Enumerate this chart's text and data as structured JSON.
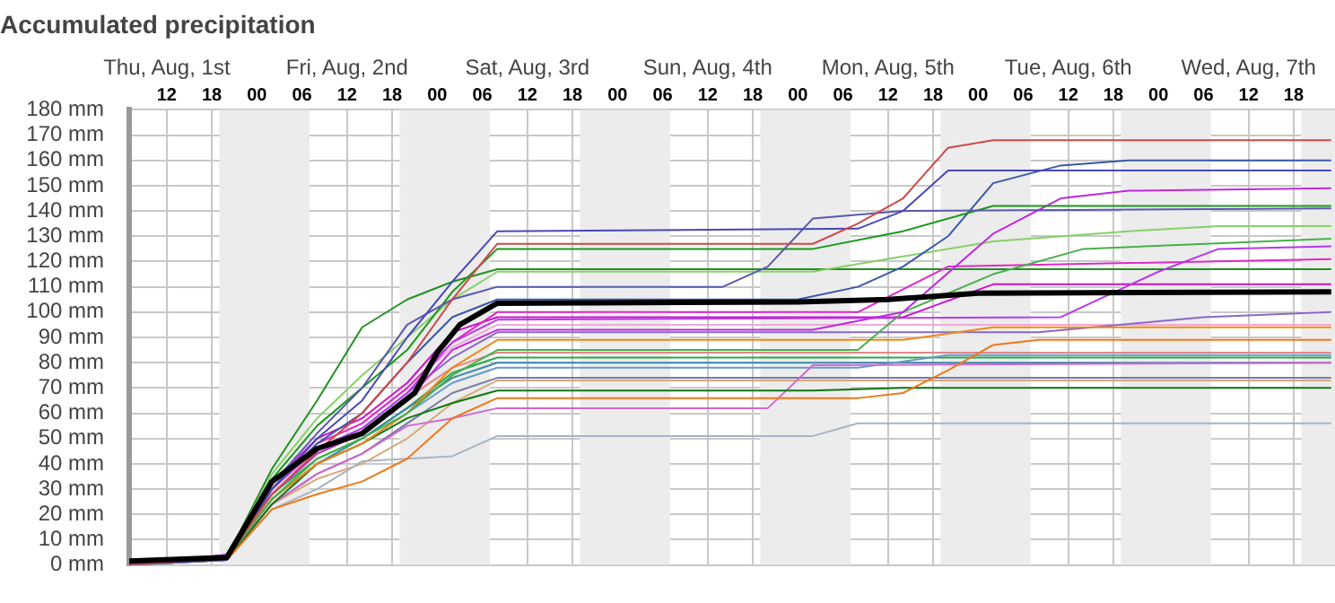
{
  "chart_data": {
    "type": "line",
    "title": "Accumulated precipitation",
    "xlim": [
      7,
      167.5
    ],
    "xticks": [
      {
        "value": 12,
        "label": "12"
      },
      {
        "value": 18,
        "label": "18"
      },
      {
        "value": 24,
        "label": "00"
      },
      {
        "value": 30,
        "label": "06"
      },
      {
        "value": 36,
        "label": "12"
      },
      {
        "value": 42,
        "label": "18"
      },
      {
        "value": 48,
        "label": "00"
      },
      {
        "value": 54,
        "label": "06"
      },
      {
        "value": 60,
        "label": "12"
      },
      {
        "value": 66,
        "label": "18"
      },
      {
        "value": 72,
        "label": "00"
      },
      {
        "value": 78,
        "label": "06"
      },
      {
        "value": 84,
        "label": "12"
      },
      {
        "value": 90,
        "label": "18"
      },
      {
        "value": 96,
        "label": "00"
      },
      {
        "value": 102,
        "label": "06"
      },
      {
        "value": 108,
        "label": "12"
      },
      {
        "value": 114,
        "label": "18"
      },
      {
        "value": 120,
        "label": "00"
      },
      {
        "value": 126,
        "label": "06"
      },
      {
        "value": 132,
        "label": "12"
      },
      {
        "value": 138,
        "label": "18"
      },
      {
        "value": 144,
        "label": "00"
      },
      {
        "value": 150,
        "label": "06"
      },
      {
        "value": 156,
        "label": "12"
      },
      {
        "value": 162,
        "label": "18"
      }
    ],
    "x2lim": [
      "--08-01T07:00",
      "--08-07T23:30"
    ],
    "x2ticks": [
      {
        "value": "--08-01T12:00",
        "label": "Thu, Aug, 1st"
      },
      {
        "value": "--08-02T12:00",
        "label": "Fri, Aug, 2nd"
      },
      {
        "value": "--08-03T12:00",
        "label": "Sat, Aug, 3rd"
      },
      {
        "value": "--08-04T12:00",
        "label": "Sun, Aug, 4th"
      },
      {
        "value": "--08-05T12:00",
        "label": "Mon, Aug, 5th"
      },
      {
        "value": "--08-06T12:00",
        "label": "Tue, Aug, 6th"
      },
      {
        "value": "--08-07T12:00",
        "label": "Wed, Aug, 7th"
      }
    ],
    "ylim": [
      0,
      180
    ],
    "yticks": [
      {
        "value": 0,
        "label": "0 mm"
      },
      {
        "value": 10,
        "label": "10 mm"
      },
      {
        "value": 20,
        "label": "20 mm"
      },
      {
        "value": 30,
        "label": "30 mm"
      },
      {
        "value": 40,
        "label": "40 mm"
      },
      {
        "value": 50,
        "label": "50 mm"
      },
      {
        "value": 60,
        "label": "60 mm"
      },
      {
        "value": 70,
        "label": "70 mm"
      },
      {
        "value": 80,
        "label": "80 mm"
      },
      {
        "value": 90,
        "label": "90 mm"
      },
      {
        "value": 100,
        "label": "100 mm"
      },
      {
        "value": 110,
        "label": "110 mm"
      },
      {
        "value": 120,
        "label": "120 mm"
      },
      {
        "value": 130,
        "label": "130 mm"
      },
      {
        "value": 140,
        "label": "140 mm"
      },
      {
        "value": 150,
        "label": "150 mm"
      },
      {
        "value": 160,
        "label": "160 mm"
      },
      {
        "value": 170,
        "label": "170 mm"
      },
      {
        "value": 180,
        "label": "180 mm"
      }
    ],
    "grid": true,
    "bands": [
      {
        "axis": "x",
        "from": 19,
        "to": 31,
        "color": "#ececec"
      },
      {
        "axis": "x",
        "from": 43,
        "to": 55,
        "color": "#ececec"
      },
      {
        "axis": "x",
        "from": 67,
        "to": 79,
        "color": "#ececec"
      },
      {
        "axis": "x",
        "from": 91,
        "to": 103,
        "color": "#ececec"
      },
      {
        "axis": "x",
        "from": 115,
        "to": 127,
        "color": "#ececec"
      },
      {
        "axis": "x",
        "from": 139,
        "to": 151,
        "color": "#ececec"
      },
      {
        "axis": "x",
        "from": 163,
        "to": 167.5,
        "color": "#ececec"
      }
    ],
    "series": [
      {
        "color": "#d04848",
        "x": [
          7,
          20,
          26,
          32,
          38,
          44,
          50,
          56,
          98,
          104,
          110,
          116,
          122,
          167
        ],
        "values": [
          0,
          3,
          28,
          45,
          60,
          80,
          105,
          127,
          127,
          135,
          145,
          165,
          168,
          168
        ]
      },
      {
        "color": "#4848b8",
        "x": [
          7,
          20,
          26,
          32,
          38,
          44,
          50,
          56,
          104,
          110,
          116,
          167
        ],
        "values": [
          0,
          2,
          30,
          50,
          65,
          90,
          112,
          132,
          133,
          140,
          156,
          156
        ]
      },
      {
        "color": "#5858b0",
        "x": [
          7,
          20,
          26,
          32,
          38,
          44,
          50,
          56,
          86,
          92,
          98,
          110,
          167
        ],
        "values": [
          0,
          3,
          32,
          52,
          70,
          95,
          105,
          110,
          110,
          118,
          137,
          140,
          141
        ]
      },
      {
        "color": "#189818",
        "x": [
          7,
          20,
          26,
          32,
          38,
          44,
          50,
          56,
          98,
          110,
          122,
          167
        ],
        "values": [
          0,
          3,
          34,
          55,
          70,
          85,
          108,
          125,
          125,
          132,
          142,
          142
        ]
      },
      {
        "color": "#3858a8",
        "x": [
          7,
          20,
          26,
          32,
          38,
          44,
          50,
          56,
          96,
          104,
          110,
          116,
          122,
          131,
          140,
          167
        ],
        "values": [
          0,
          3,
          30,
          48,
          60,
          80,
          98,
          105,
          105,
          110,
          118,
          130,
          151,
          158,
          160,
          160
        ]
      },
      {
        "color": "#c028e0",
        "x": [
          7,
          20,
          26,
          32,
          38,
          44,
          50,
          56,
          98,
          110,
          122,
          131,
          140,
          167
        ],
        "values": [
          0,
          4,
          28,
          44,
          52,
          65,
          85,
          93,
          93,
          100,
          131,
          145,
          148,
          149
        ]
      },
      {
        "color": "#b838e8",
        "x": [
          7,
          20,
          26,
          32,
          38,
          44,
          50,
          56,
          131,
          144,
          152,
          167
        ],
        "values": [
          0,
          4,
          30,
          46,
          54,
          68,
          88,
          97,
          98,
          116,
          125,
          126
        ]
      },
      {
        "color": "#88d068",
        "x": [
          7,
          20,
          26,
          32,
          38,
          44,
          50,
          56,
          98,
          110,
          122,
          140,
          152,
          167
        ],
        "values": [
          0,
          3,
          36,
          58,
          75,
          90,
          105,
          116,
          116,
          122,
          128,
          132,
          134,
          134
        ]
      },
      {
        "color": "#48b048",
        "x": [
          7,
          20,
          26,
          32,
          38,
          44,
          50,
          56,
          104,
          110,
          122,
          134,
          167
        ],
        "values": [
          0,
          3,
          26,
          42,
          50,
          60,
          75,
          85,
          85,
          100,
          115,
          125,
          129
        ]
      },
      {
        "color": "#e028c8",
        "x": [
          7,
          20,
          26,
          32,
          38,
          44,
          50,
          56,
          104,
          116,
          167
        ],
        "values": [
          0,
          3,
          30,
          48,
          56,
          70,
          88,
          100,
          100,
          118,
          121
        ]
      },
      {
        "color": "#f08818",
        "x": [
          7,
          20,
          26,
          32,
          38,
          44,
          50,
          56,
          110,
          122,
          167
        ],
        "values": [
          0,
          3,
          26,
          40,
          48,
          60,
          78,
          89,
          89,
          94,
          94
        ]
      },
      {
        "color": "#f07818",
        "x": [
          7,
          20,
          26,
          32,
          38,
          44,
          50,
          56,
          104,
          110,
          116,
          122,
          128,
          167
        ],
        "values": [
          0,
          2,
          22,
          28,
          33,
          42,
          58,
          66,
          66,
          68,
          77,
          87,
          89,
          89
        ]
      },
      {
        "color": "#107810",
        "x": [
          7,
          20,
          26,
          32,
          38,
          44,
          50,
          56,
          98,
          110,
          167
        ],
        "values": [
          0,
          2,
          24,
          40,
          48,
          58,
          64,
          69,
          69,
          70,
          70
        ]
      },
      {
        "color": "#a8b4c0",
        "x": [
          7,
          20,
          26,
          32,
          38,
          44,
          50,
          56,
          98,
          104,
          167
        ],
        "values": [
          0,
          2,
          22,
          30,
          41,
          42,
          43,
          51,
          51,
          56,
          56
        ]
      },
      {
        "color": "#d068d0",
        "x": [
          7,
          20,
          26,
          32,
          38,
          44,
          50,
          56,
          92,
          98,
          167
        ],
        "values": [
          0,
          3,
          24,
          36,
          44,
          55,
          58,
          62,
          62,
          79,
          80
        ]
      },
      {
        "color": "#6898c8",
        "x": [
          7,
          20,
          26,
          32,
          38,
          44,
          50,
          56,
          104,
          116,
          167
        ],
        "values": [
          0,
          3,
          26,
          40,
          48,
          60,
          72,
          78,
          78,
          83,
          83
        ]
      },
      {
        "color": "#e08888",
        "x": [
          7,
          20,
          26,
          32,
          38,
          44,
          50,
          56,
          167
        ],
        "values": [
          0,
          3,
          28,
          44,
          52,
          66,
          78,
          84,
          84
        ]
      },
      {
        "color": "#8868c8",
        "x": [
          7,
          20,
          26,
          32,
          38,
          44,
          50,
          56,
          128,
          150,
          167
        ],
        "values": [
          0,
          3,
          30,
          46,
          54,
          68,
          82,
          92,
          92,
          98,
          100
        ]
      },
      {
        "color": "#d8a878",
        "x": [
          7,
          20,
          26,
          32,
          38,
          44,
          50,
          56,
          167
        ],
        "values": [
          0,
          2,
          24,
          34,
          40,
          50,
          64,
          73,
          73
        ]
      },
      {
        "color": "#3888a8",
        "x": [
          26,
          32,
          38,
          44,
          50,
          56,
          167
        ],
        "values": [
          26,
          40,
          50,
          62,
          74,
          80,
          80
        ]
      },
      {
        "color": "#f0a8d8",
        "x": [
          7,
          20,
          26,
          32,
          38,
          44,
          50,
          56,
          167
        ],
        "values": [
          0,
          3,
          30,
          48,
          56,
          70,
          86,
          95,
          95
        ]
      },
      {
        "color": "#28a848",
        "x": [
          7,
          20,
          26,
          32,
          38,
          44,
          50,
          56,
          167
        ],
        "values": [
          0,
          3,
          28,
          42,
          50,
          62,
          76,
          82,
          82
        ]
      },
      {
        "color": "#7878a8",
        "x": [
          7,
          20,
          26,
          32,
          38,
          44,
          50,
          56,
          167
        ],
        "values": [
          0,
          2,
          24,
          36,
          44,
          56,
          68,
          74,
          74
        ]
      },
      {
        "color": "#cc10cc",
        "x": [
          7,
          20,
          26,
          32,
          38,
          44,
          50,
          56,
          110,
          122,
          167
        ],
        "values": [
          0,
          3,
          32,
          50,
          58,
          72,
          92,
          98,
          98,
          111,
          111
        ]
      },
      {
        "color": "#209020",
        "x": [
          7,
          20,
          26,
          32,
          38,
          44,
          50,
          56,
          167
        ],
        "values": [
          0,
          3,
          38,
          65,
          94,
          105,
          112,
          117,
          117
        ]
      },
      {
        "color": "#000000",
        "x": [
          7,
          20,
          26,
          32,
          38,
          45,
          48,
          51,
          56,
          96,
          108,
          120,
          167
        ],
        "values": [
          1.5,
          3,
          33,
          46,
          52,
          68,
          84,
          95,
          103.5,
          104,
          105,
          107.5,
          108
        ]
      }
    ]
  }
}
